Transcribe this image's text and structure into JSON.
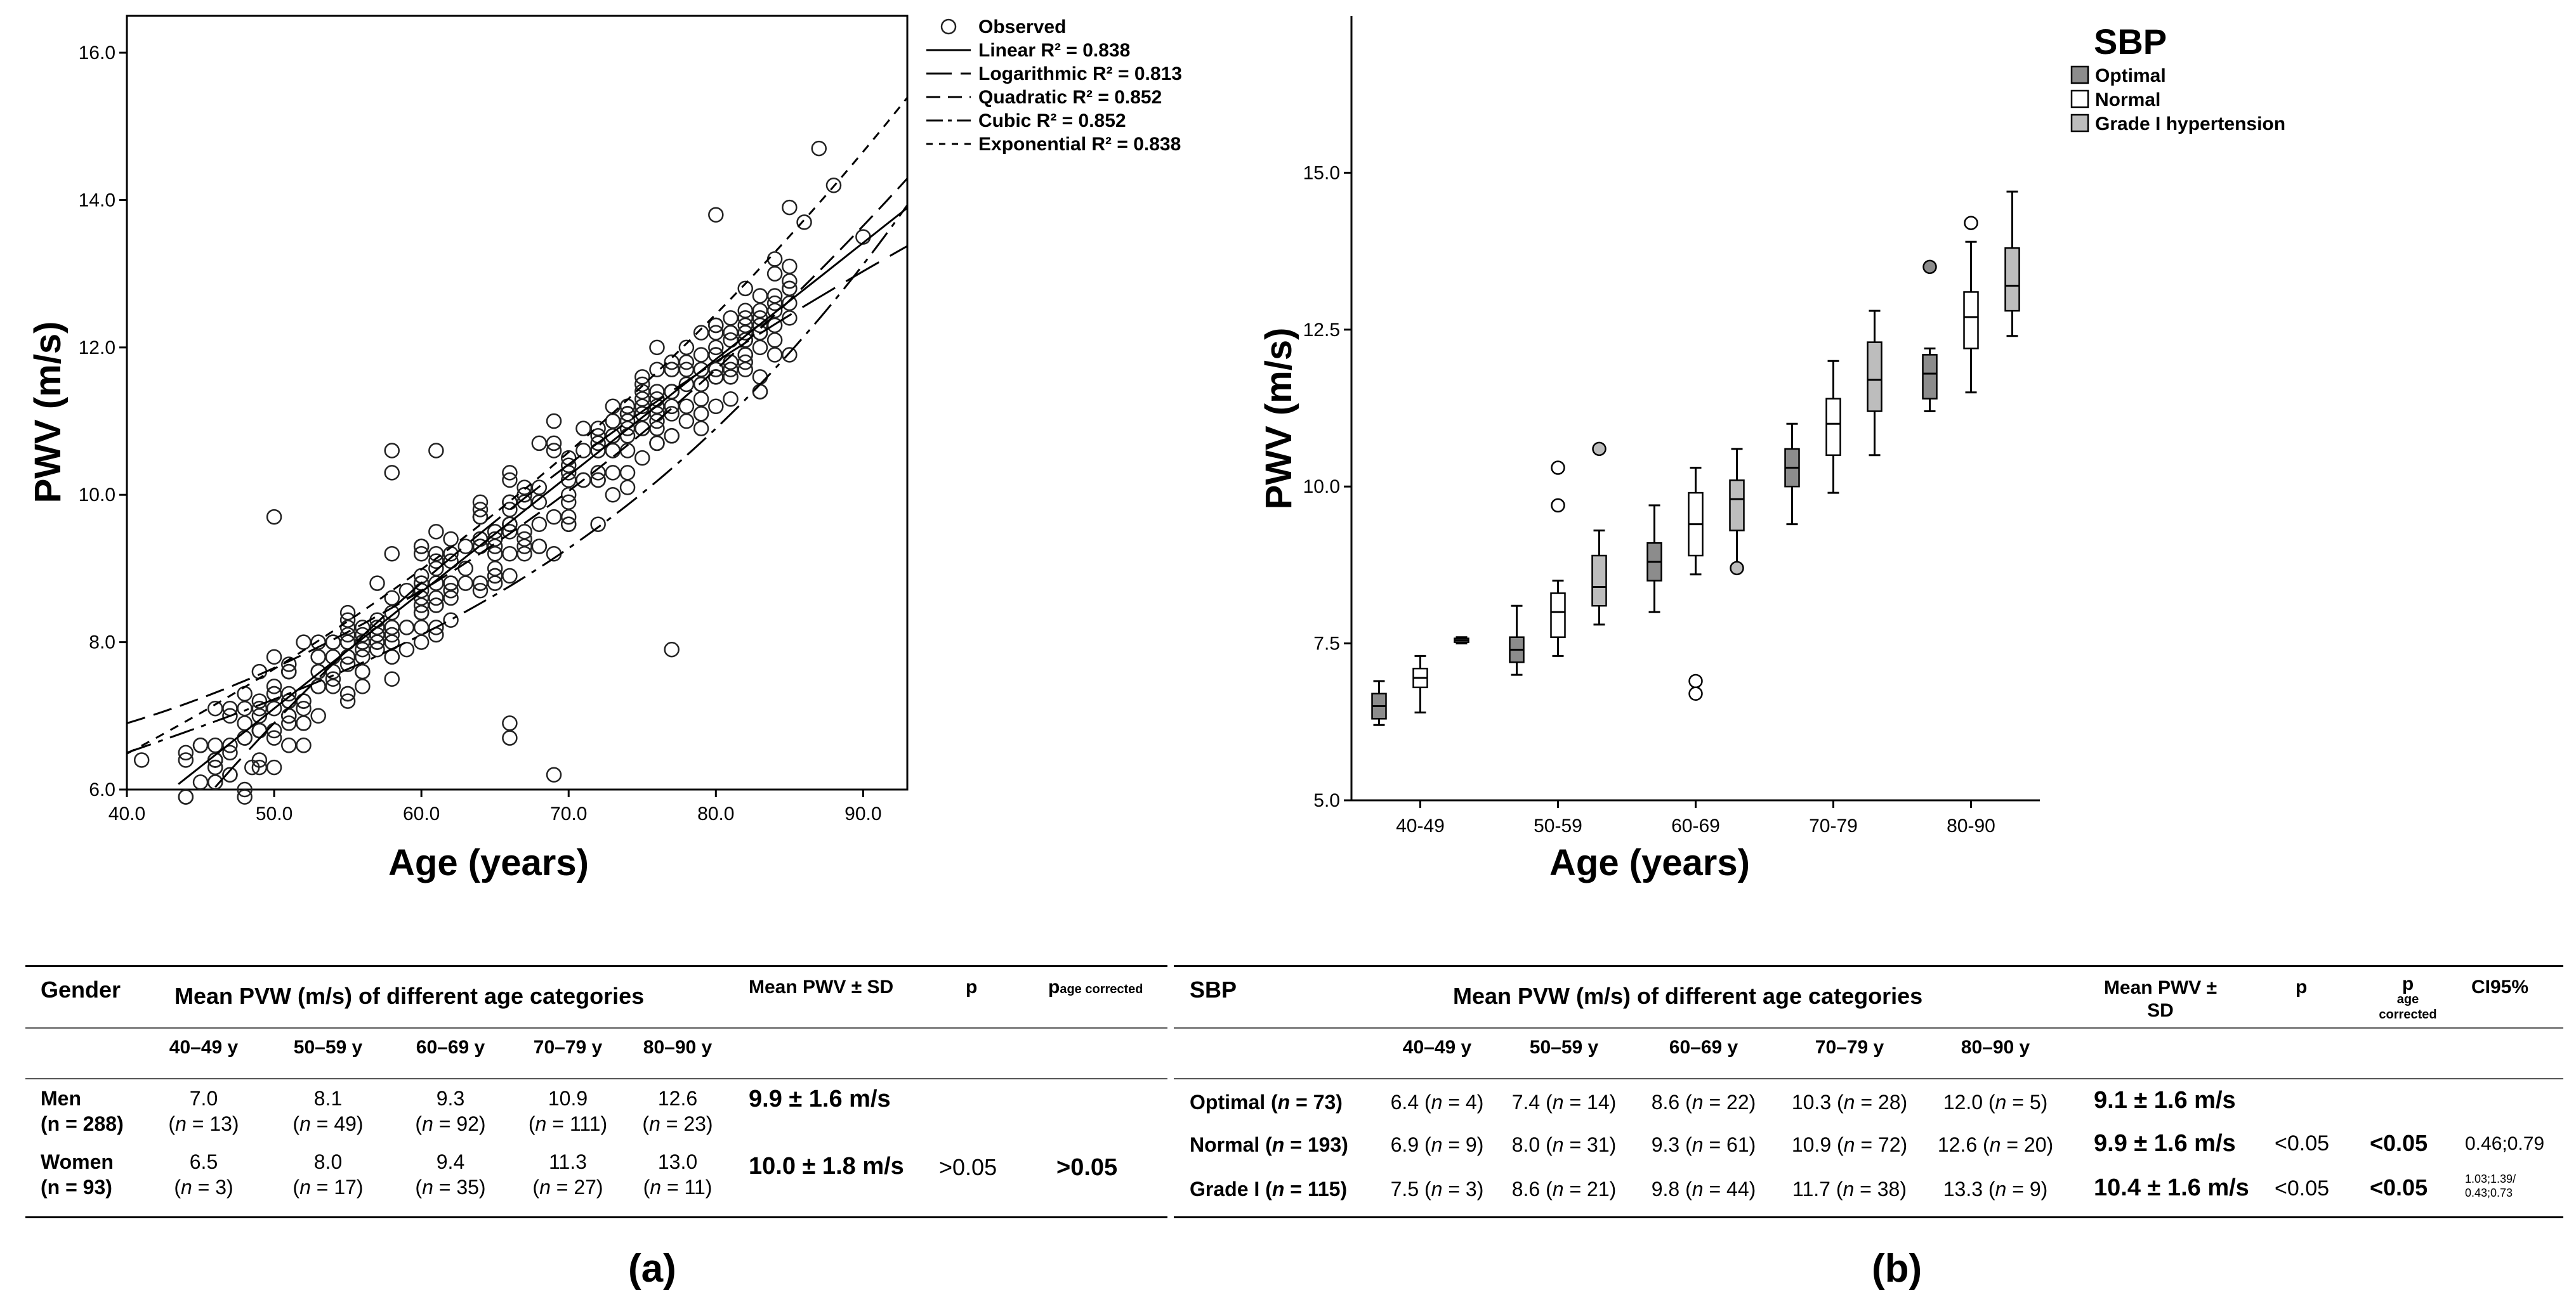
{
  "chart_a": {
    "type": "scatter",
    "xlabel": "Age (years)",
    "ylabel": "PWV (m/s)",
    "xlim": [
      40,
      93
    ],
    "ylim": [
      6,
      16.5
    ],
    "xticks": [
      40,
      50,
      60,
      70,
      80,
      90
    ],
    "xtick_labels": [
      "40.0",
      "50.0",
      "60.0",
      "70.0",
      "80.0",
      "90.0"
    ],
    "yticks": [
      6,
      8,
      10,
      12,
      14,
      16
    ],
    "ytick_labels": [
      "6.0",
      "8.0",
      "10.0",
      "12.0",
      "14.0",
      "16.0"
    ],
    "legend": [
      {
        "label": "Observed",
        "style": "circle"
      },
      {
        "label": "Linear R² = 0.838",
        "style": "solid"
      },
      {
        "label": "Logarithmic R² = 0.813",
        "style": "longdash"
      },
      {
        "label": "Quadratic R² = 0.852",
        "style": "dash"
      },
      {
        "label": "Cubic R² = 0.852",
        "style": "dashdot"
      },
      {
        "label": "Exponential R² = 0.838",
        "style": "shortdash"
      }
    ],
    "fits": {
      "linear": {
        "slope": 0.158,
        "intercept": -0.8
      },
      "logarithmic": {
        "a": -33.9,
        "b": 10.43
      },
      "quadratic": {
        "a": 0.0015,
        "b": -0.06,
        "c": 6.9
      },
      "cubic": {
        "a": 2.5e-05,
        "b": -0.003,
        "c": 0.19,
        "d": 2.1
      },
      "exponential": {
        "a": 3.38,
        "b": 0.0163
      }
    },
    "outliers": [
      [
        50,
        9.7
      ],
      [
        58,
        10.6
      ],
      [
        58,
        10.3
      ],
      [
        61,
        10.6
      ],
      [
        66,
        6.9
      ],
      [
        66,
        6.7
      ],
      [
        69,
        6.2
      ],
      [
        77,
        7.9
      ],
      [
        47,
        6.2
      ],
      [
        48.5,
        6.3
      ],
      [
        41,
        6.4
      ],
      [
        80,
        13.8
      ],
      [
        87,
        14.7
      ],
      [
        88,
        14.2
      ],
      [
        90,
        13.5
      ],
      [
        85,
        13.9
      ],
      [
        86,
        13.7
      ],
      [
        84,
        13.0
      ],
      [
        82,
        12.5
      ]
    ]
  },
  "chart_b": {
    "type": "box",
    "title": "SBP",
    "xlabel": "Age (years)",
    "ylabel": "PWV (m/s)",
    "ylim": [
      5,
      17.5
    ],
    "yticks": [
      5,
      7.5,
      10,
      12.5,
      15
    ],
    "ytick_labels": [
      "5.0",
      "7.5",
      "10.0",
      "12.5",
      "15.0"
    ],
    "categories": [
      "40-49",
      "50-59",
      "60-69",
      "70-79",
      "80-90"
    ],
    "legend": [
      {
        "label": "Optimal",
        "color": "#8c8c8c"
      },
      {
        "label": "Normal",
        "color": "#ffffff"
      },
      {
        "label": "Grade I hypertension",
        "color": "#bdbdbd"
      }
    ],
    "series": [
      {
        "name": "Optimal",
        "color": "#8c8c8c",
        "boxes": [
          {
            "min": 6.2,
            "q1": 6.3,
            "med": 6.5,
            "q3": 6.7,
            "max": 6.9,
            "outliers": []
          },
          {
            "min": 7.0,
            "q1": 7.2,
            "med": 7.4,
            "q3": 7.6,
            "max": 8.1,
            "outliers": []
          },
          {
            "min": 8.0,
            "q1": 8.5,
            "med": 8.8,
            "q3": 9.1,
            "max": 9.7,
            "outliers": []
          },
          {
            "min": 9.4,
            "q1": 10.0,
            "med": 10.3,
            "q3": 10.6,
            "max": 11.0,
            "outliers": []
          },
          {
            "min": 11.2,
            "q1": 11.4,
            "med": 11.8,
            "q3": 12.1,
            "max": 12.2,
            "outliers": [
              13.5
            ]
          }
        ]
      },
      {
        "name": "Normal",
        "color": "#ffffff",
        "boxes": [
          {
            "min": 6.4,
            "q1": 6.8,
            "med": 6.95,
            "q3": 7.1,
            "max": 7.3,
            "outliers": []
          },
          {
            "min": 7.3,
            "q1": 7.6,
            "med": 8.0,
            "q3": 8.3,
            "max": 8.5,
            "outliers": [
              10.3,
              9.7
            ]
          },
          {
            "min": 8.6,
            "q1": 8.9,
            "med": 9.4,
            "q3": 9.9,
            "max": 10.3,
            "outliers": [
              6.9,
              6.7
            ]
          },
          {
            "min": 9.9,
            "q1": 10.5,
            "med": 11.0,
            "q3": 11.4,
            "max": 12.0,
            "outliers": []
          },
          {
            "min": 11.5,
            "q1": 12.2,
            "med": 12.7,
            "q3": 13.1,
            "max": 13.9,
            "outliers": [
              14.2
            ]
          }
        ]
      },
      {
        "name": "Grade I hypertension",
        "color": "#bdbdbd",
        "boxes": [
          {
            "min": 7.5,
            "q1": 7.52,
            "med": 7.55,
            "q3": 7.58,
            "max": 7.6,
            "outliers": []
          },
          {
            "min": 7.8,
            "q1": 8.1,
            "med": 8.4,
            "q3": 8.9,
            "max": 9.3,
            "outliers": [
              10.6
            ]
          },
          {
            "min": 8.7,
            "q1": 9.3,
            "med": 9.8,
            "q3": 10.1,
            "max": 10.6,
            "outliers": [
              8.7
            ]
          },
          {
            "min": 10.5,
            "q1": 11.2,
            "med": 11.7,
            "q3": 12.3,
            "max": 12.8,
            "outliers": []
          },
          {
            "min": 12.4,
            "q1": 12.8,
            "med": 13.2,
            "q3": 13.8,
            "max": 14.7,
            "outliers": []
          }
        ]
      }
    ]
  },
  "panel_labels": {
    "a": "(a)",
    "b": "(b)"
  },
  "table_a": {
    "header_first": "Gender",
    "header_group": "Mean PVW (m/s) of different age categories",
    "header_mean": "Mean PWV ± SD",
    "header_p": "p",
    "header_p_sub": "age corrected",
    "age_cols": [
      "40–49 y",
      "50–59 y",
      "60–69 y",
      "70–79 y",
      "80–90 y"
    ],
    "rows": [
      {
        "label": "Men",
        "n": "(n = 288)",
        "values": [
          "7.0",
          "8.1",
          "9.3",
          "10.9",
          "12.6"
        ],
        "ns": [
          "(n = 13)",
          "(n = 49)",
          "(n = 92)",
          "(n = 111)",
          "(n = 23)"
        ],
        "mean": "9.9 ± 1.6 m/s",
        "p": "",
        "pac": ""
      },
      {
        "label": "Women",
        "n": "(n = 93)",
        "values": [
          "6.5",
          "8.0",
          "9.4",
          "11.3",
          "13.0"
        ],
        "ns": [
          "(n = 3)",
          "(n = 17)",
          "(n = 35)",
          "(n = 27)",
          "(n = 11)"
        ],
        "mean": "10.0 ± 1.8 m/s",
        "p": ">0.05",
        "pac": ">0.05"
      }
    ]
  },
  "table_b": {
    "header_first": "SBP",
    "header_group": "Mean PVW (m/s) of different age categories",
    "header_mean_1": "Mean PWV ±",
    "header_mean_2": "SD",
    "header_p": "p",
    "header_p_main": "p",
    "header_p_sub1": "age",
    "header_p_sub2": "corrected",
    "header_ci": "CI95%",
    "age_cols": [
      "40–49 y",
      "50–59 y",
      "60–69 y",
      "70–79 y",
      "80–90 y"
    ],
    "rows": [
      {
        "label": "Optimal (n = 73)",
        "cells": [
          "6.4 (n = 4)",
          "7.4 (n = 14)",
          "8.6 (n = 22)",
          "10.3 (n = 28)",
          "12.0 (n = 5)"
        ],
        "mean": "9.1 ± 1.6 m/s",
        "p": "",
        "pac": "",
        "ci": ""
      },
      {
        "label": "Normal (n = 193)",
        "cells": [
          "6.9 (n = 9)",
          "8.0 (n = 31)",
          "9.3 (n = 61)",
          "10.9 (n = 72)",
          "12.6 (n = 20)"
        ],
        "mean": "9.9 ± 1.6 m/s",
        "p": "<0.05",
        "pac": "<0.05",
        "ci": "0.46;0.79"
      },
      {
        "label": "Grade I (n = 115)",
        "cells": [
          "7.5 (n = 3)",
          "8.6 (n = 21)",
          "9.8 (n = 44)",
          "11.7 (n = 38)",
          "13.3 (n = 9)"
        ],
        "mean": "10.4 ± 1.6 m/s",
        "p": "<0.05",
        "pac": "<0.05",
        "ci": "1.03;1.39/ 0.43;0.73"
      }
    ]
  }
}
